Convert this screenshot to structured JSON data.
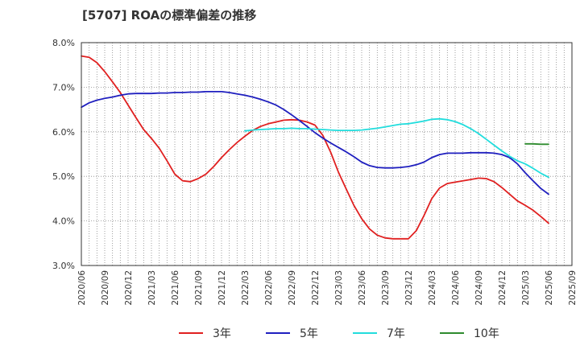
{
  "chart_data": {
    "type": "line",
    "title": "[5707]  ROAの標準偏差の推移",
    "xlabel": "",
    "ylabel": "",
    "ylim": [
      3.0,
      8.0
    ],
    "y_ticks": [
      "3.0%",
      "4.0%",
      "5.0%",
      "6.0%",
      "7.0%",
      "8.0%"
    ],
    "y_tick_values": [
      3.0,
      4.0,
      5.0,
      6.0,
      7.0,
      8.0
    ],
    "x_ticks": [
      "2020/06",
      "2020/09",
      "2020/12",
      "2021/03",
      "2021/06",
      "2021/09",
      "2021/12",
      "2022/03",
      "2022/06",
      "2022/09",
      "2022/12",
      "2023/03",
      "2023/06",
      "2023/09",
      "2023/12",
      "2024/03",
      "2024/06",
      "2024/09",
      "2024/12",
      "2025/03",
      "2025/06",
      "2025/09"
    ],
    "grid": true,
    "legend_position": "bottom",
    "series": [
      {
        "name": "3年",
        "color": "#e02020",
        "points": [
          [
            "2020/06",
            7.7
          ],
          [
            "2020/07",
            7.67
          ],
          [
            "2020/08",
            7.55
          ],
          [
            "2020/09",
            7.35
          ],
          [
            "2020/10",
            7.12
          ],
          [
            "2020/11",
            6.88
          ],
          [
            "2020/12",
            6.6
          ],
          [
            "2021/01",
            6.32
          ],
          [
            "2021/02",
            6.05
          ],
          [
            "2021/03",
            5.85
          ],
          [
            "2021/04",
            5.63
          ],
          [
            "2021/05",
            5.35
          ],
          [
            "2021/06",
            5.05
          ],
          [
            "2021/07",
            4.9
          ],
          [
            "2021/08",
            4.88
          ],
          [
            "2021/09",
            4.95
          ],
          [
            "2021/10",
            5.05
          ],
          [
            "2021/11",
            5.22
          ],
          [
            "2021/12",
            5.42
          ],
          [
            "2022/01",
            5.6
          ],
          [
            "2022/02",
            5.76
          ],
          [
            "2022/03",
            5.9
          ],
          [
            "2022/04",
            6.03
          ],
          [
            "2022/05",
            6.12
          ],
          [
            "2022/06",
            6.18
          ],
          [
            "2022/07",
            6.22
          ],
          [
            "2022/08",
            6.26
          ],
          [
            "2022/09",
            6.27
          ],
          [
            "2022/10",
            6.26
          ],
          [
            "2022/11",
            6.22
          ],
          [
            "2022/12",
            6.15
          ],
          [
            "2023/01",
            5.92
          ],
          [
            "2023/02",
            5.55
          ],
          [
            "2023/03",
            5.1
          ],
          [
            "2023/04",
            4.72
          ],
          [
            "2023/05",
            4.35
          ],
          [
            "2023/06",
            4.05
          ],
          [
            "2023/07",
            3.82
          ],
          [
            "2023/08",
            3.68
          ],
          [
            "2023/09",
            3.62
          ],
          [
            "2023/10",
            3.6
          ],
          [
            "2023/11",
            3.6
          ],
          [
            "2023/12",
            3.6
          ],
          [
            "2024/01",
            3.78
          ],
          [
            "2024/02",
            4.12
          ],
          [
            "2024/03",
            4.5
          ],
          [
            "2024/04",
            4.74
          ],
          [
            "2024/05",
            4.84
          ],
          [
            "2024/06",
            4.87
          ],
          [
            "2024/07",
            4.9
          ],
          [
            "2024/08",
            4.93
          ],
          [
            "2024/09",
            4.96
          ],
          [
            "2024/10",
            4.95
          ],
          [
            "2024/11",
            4.88
          ],
          [
            "2024/12",
            4.75
          ],
          [
            "2025/01",
            4.6
          ],
          [
            "2025/02",
            4.45
          ],
          [
            "2025/03",
            4.35
          ],
          [
            "2025/04",
            4.24
          ],
          [
            "2025/05",
            4.1
          ],
          [
            "2025/06",
            3.95
          ]
        ]
      },
      {
        "name": "5年",
        "color": "#1f1fbf",
        "points": [
          [
            "2020/06",
            6.55
          ],
          [
            "2020/07",
            6.65
          ],
          [
            "2020/08",
            6.71
          ],
          [
            "2020/09",
            6.75
          ],
          [
            "2020/10",
            6.78
          ],
          [
            "2020/11",
            6.82
          ],
          [
            "2020/12",
            6.85
          ],
          [
            "2021/01",
            6.86
          ],
          [
            "2021/02",
            6.86
          ],
          [
            "2021/03",
            6.86
          ],
          [
            "2021/04",
            6.87
          ],
          [
            "2021/05",
            6.87
          ],
          [
            "2021/06",
            6.88
          ],
          [
            "2021/07",
            6.88
          ],
          [
            "2021/08",
            6.89
          ],
          [
            "2021/09",
            6.89
          ],
          [
            "2021/10",
            6.9
          ],
          [
            "2021/11",
            6.9
          ],
          [
            "2021/12",
            6.9
          ],
          [
            "2022/01",
            6.88
          ],
          [
            "2022/02",
            6.85
          ],
          [
            "2022/03",
            6.82
          ],
          [
            "2022/04",
            6.78
          ],
          [
            "2022/05",
            6.73
          ],
          [
            "2022/06",
            6.67
          ],
          [
            "2022/07",
            6.6
          ],
          [
            "2022/08",
            6.5
          ],
          [
            "2022/09",
            6.38
          ],
          [
            "2022/10",
            6.25
          ],
          [
            "2022/11",
            6.12
          ],
          [
            "2022/12",
            5.98
          ],
          [
            "2023/01",
            5.86
          ],
          [
            "2023/02",
            5.75
          ],
          [
            "2023/03",
            5.65
          ],
          [
            "2023/04",
            5.55
          ],
          [
            "2023/05",
            5.44
          ],
          [
            "2023/06",
            5.32
          ],
          [
            "2023/07",
            5.24
          ],
          [
            "2023/08",
            5.2
          ],
          [
            "2023/09",
            5.19
          ],
          [
            "2023/10",
            5.19
          ],
          [
            "2023/11",
            5.2
          ],
          [
            "2023/12",
            5.22
          ],
          [
            "2024/01",
            5.26
          ],
          [
            "2024/02",
            5.32
          ],
          [
            "2024/03",
            5.42
          ],
          [
            "2024/04",
            5.49
          ],
          [
            "2024/05",
            5.52
          ],
          [
            "2024/06",
            5.52
          ],
          [
            "2024/07",
            5.52
          ],
          [
            "2024/08",
            5.53
          ],
          [
            "2024/09",
            5.53
          ],
          [
            "2024/10",
            5.53
          ],
          [
            "2024/11",
            5.52
          ],
          [
            "2024/12",
            5.49
          ],
          [
            "2025/01",
            5.42
          ],
          [
            "2025/02",
            5.28
          ],
          [
            "2025/03",
            5.08
          ],
          [
            "2025/04",
            4.9
          ],
          [
            "2025/05",
            4.73
          ],
          [
            "2025/06",
            4.6
          ]
        ]
      },
      {
        "name": "7年",
        "color": "#22dddd",
        "points": [
          [
            "2022/03",
            6.02
          ],
          [
            "2022/04",
            6.04
          ],
          [
            "2022/05",
            6.05
          ],
          [
            "2022/06",
            6.06
          ],
          [
            "2022/07",
            6.07
          ],
          [
            "2022/08",
            6.07
          ],
          [
            "2022/09",
            6.08
          ],
          [
            "2022/10",
            6.07
          ],
          [
            "2022/11",
            6.07
          ],
          [
            "2022/12",
            6.06
          ],
          [
            "2023/01",
            6.05
          ],
          [
            "2023/02",
            6.04
          ],
          [
            "2023/03",
            6.03
          ],
          [
            "2023/04",
            6.03
          ],
          [
            "2023/05",
            6.03
          ],
          [
            "2023/06",
            6.04
          ],
          [
            "2023/07",
            6.06
          ],
          [
            "2023/08",
            6.08
          ],
          [
            "2023/09",
            6.11
          ],
          [
            "2023/10",
            6.14
          ],
          [
            "2023/11",
            6.17
          ],
          [
            "2023/12",
            6.18
          ],
          [
            "2024/01",
            6.21
          ],
          [
            "2024/02",
            6.24
          ],
          [
            "2024/03",
            6.28
          ],
          [
            "2024/04",
            6.29
          ],
          [
            "2024/05",
            6.27
          ],
          [
            "2024/06",
            6.23
          ],
          [
            "2024/07",
            6.16
          ],
          [
            "2024/08",
            6.07
          ],
          [
            "2024/09",
            5.96
          ],
          [
            "2024/10",
            5.83
          ],
          [
            "2024/11",
            5.7
          ],
          [
            "2024/12",
            5.57
          ],
          [
            "2025/01",
            5.45
          ],
          [
            "2025/02",
            5.35
          ],
          [
            "2025/03",
            5.28
          ],
          [
            "2025/04",
            5.18
          ],
          [
            "2025/05",
            5.07
          ],
          [
            "2025/06",
            4.98
          ]
        ]
      },
      {
        "name": "10年",
        "color": "#2e8b2e",
        "points": [
          [
            "2025/03",
            5.73
          ],
          [
            "2025/04",
            5.73
          ],
          [
            "2025/05",
            5.72
          ],
          [
            "2025/06",
            5.72
          ]
        ]
      }
    ]
  }
}
